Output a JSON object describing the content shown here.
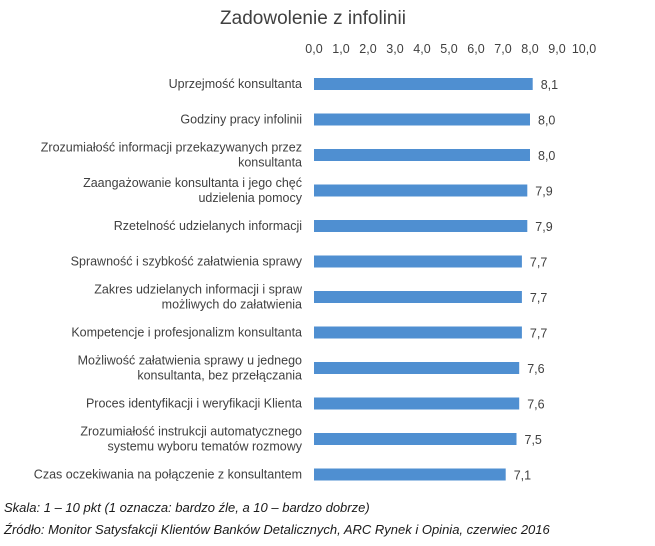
{
  "chart_data": {
    "type": "bar",
    "orientation": "horizontal",
    "title": "Zadowolenie z infolinii",
    "xlim": [
      0,
      10
    ],
    "ticks": [
      "0,0",
      "1,0",
      "2,0",
      "3,0",
      "4,0",
      "5,0",
      "6,0",
      "7,0",
      "8,0",
      "9,0",
      "10,0"
    ],
    "axis_position": "top",
    "grid": false,
    "bar_color": "#4f8fd1",
    "categories": [
      "Uprzejmość konsultanta",
      "Godziny pracy infolinii",
      "Zrozumiałość informacji przekazywanych przez konsultanta",
      "Zaangażowanie konsultanta i jego chęć udzielenia pomocy",
      "Rzetelność udzielanych informacji",
      "Sprawność i szybkość załatwienia sprawy",
      "Zakres udzielanych informacji i spraw możliwych do załatwienia",
      "Kompetencje i profesjonalizm konsultanta",
      "Możliwość załatwienia sprawy u jednego konsultanta, bez przełączania",
      "Proces identyfikacji i weryfikacji Klienta",
      "Zrozumiałość instrukcji automatycznego systemu wyboru tematów rozmowy",
      "Czas oczekiwania na połączenie z konsultantem"
    ],
    "category_lines": [
      [
        "Uprzejmość konsultanta"
      ],
      [
        "Godziny pracy infolinii"
      ],
      [
        "Zrozumiałość informacji przekazywanych przez",
        "konsultanta"
      ],
      [
        "Zaangażowanie konsultanta i jego chęć",
        "udzielenia pomocy"
      ],
      [
        "Rzetelność udzielanych informacji"
      ],
      [
        "Sprawność i szybkość załatwienia sprawy"
      ],
      [
        "Zakres udzielanych informacji i spraw",
        "możliwych do załatwienia"
      ],
      [
        "Kompetencje i profesjonalizm konsultanta"
      ],
      [
        "Możliwość załatwienia sprawy u jednego",
        "konsultanta, bez przełączania"
      ],
      [
        "Proces identyfikacji i weryfikacji Klienta"
      ],
      [
        "Zrozumiałość instrukcji automatycznego",
        "systemu wyboru tematów rozmowy"
      ],
      [
        "Czas oczekiwania na połączenie z konsultantem"
      ]
    ],
    "values": [
      8.1,
      8.0,
      8.0,
      7.9,
      7.9,
      7.7,
      7.7,
      7.7,
      7.6,
      7.6,
      7.5,
      7.1
    ],
    "value_labels": [
      "8,1",
      "8,0",
      "8,0",
      "7,9",
      "7,9",
      "7,7",
      "7,7",
      "7,7",
      "7,6",
      "7,6",
      "7,5",
      "7,1"
    ]
  },
  "notes": {
    "scale": "Skala: 1 – 10 pkt (1 oznacza: bardzo źle, a 10 – bardzo dobrze)",
    "source": "Źródło: Monitor Satysfakcji Klientów Banków Detalicznych, ARC Rynek i Opinia, czerwiec 2016"
  }
}
